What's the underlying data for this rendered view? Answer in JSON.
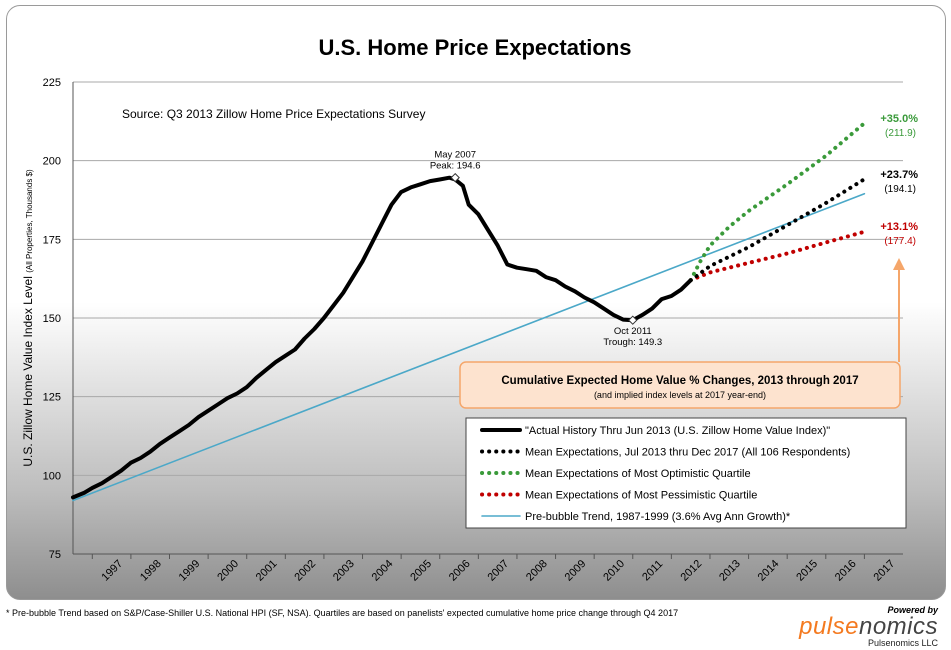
{
  "chart_data": {
    "type": "line",
    "title": "U.S. Home Price Expectations",
    "source": "Source: Q3 2013 Zillow Home Price Expectations Survey",
    "ylabel": "U.S. Zillow Home Value Index Level",
    "ylabel_units": "(All Properties, Thousands $)",
    "ylim": [
      75,
      225
    ],
    "yticks": [
      75,
      100,
      125,
      150,
      175,
      200,
      225
    ],
    "xlim": [
      1996.5,
      2018
    ],
    "xticks": [
      "1997",
      "1998",
      "1999",
      "2000",
      "2001",
      "2002",
      "2003",
      "2004",
      "2005",
      "2006",
      "2007",
      "2008",
      "2009",
      "2010",
      "2011",
      "2012",
      "2013",
      "2014",
      "2015",
      "2016",
      "2017"
    ],
    "grid": true,
    "series": [
      {
        "name": "\"Actual History Thru Jun 2013  (U.S. Zillow Home Value Index)\"",
        "color": "#000000",
        "style": "solid-thick",
        "x": [
          1996.5,
          1996.8,
          1997.0,
          1997.25,
          1997.5,
          1997.75,
          1998.0,
          1998.25,
          1998.5,
          1998.75,
          1999.0,
          1999.25,
          1999.5,
          1999.75,
          2000.0,
          2000.25,
          2000.5,
          2000.75,
          2001.0,
          2001.25,
          2001.5,
          2001.75,
          2002.0,
          2002.25,
          2002.5,
          2002.75,
          2003.0,
          2003.25,
          2003.5,
          2003.75,
          2004.0,
          2004.25,
          2004.5,
          2004.75,
          2005.0,
          2005.25,
          2005.5,
          2005.75,
          2006.0,
          2006.25,
          2006.4,
          2006.6,
          2006.75,
          2007.0,
          2007.25,
          2007.5,
          2007.75,
          2008.0,
          2008.25,
          2008.5,
          2008.75,
          2009.0,
          2009.25,
          2009.5,
          2009.75,
          2010.0,
          2010.25,
          2010.5,
          2010.75,
          2011.0,
          2011.25,
          2011.5,
          2011.75,
          2012.0,
          2012.25,
          2012.5
        ],
        "y": [
          93,
          94.5,
          96,
          97.5,
          99.5,
          101.5,
          104,
          105.5,
          107.5,
          110,
          112,
          114,
          116,
          118.5,
          120.5,
          122.5,
          124.5,
          126,
          128,
          131,
          133.5,
          136,
          138,
          140,
          143.5,
          146.5,
          150,
          154,
          158,
          163,
          168,
          174,
          180,
          186,
          190,
          191.5,
          192.5,
          193.5,
          194,
          194.6,
          194,
          192,
          186,
          183,
          178,
          173,
          167,
          166,
          165.5,
          165,
          163,
          162,
          160,
          158.5,
          156.5,
          155,
          153,
          151,
          149.5,
          149.3,
          151,
          153,
          156,
          157,
          159,
          162
        ]
      },
      {
        "name": "Mean Expectations, Jul 2013 thru Dec 2017  (All 106 Respondents)",
        "color": "#000000",
        "style": "dotted",
        "x": [
          2012.5,
          2013.0,
          2014.0,
          2015.0,
          2016.0,
          2017.0
        ],
        "y": [
          162,
          166.5,
          172.5,
          179.5,
          186.5,
          194.1
        ]
      },
      {
        "name": "Mean Expectations  of Most Optimistic Quartile",
        "color": "#3a9a3a",
        "style": "dotted",
        "x": [
          2012.5,
          2012.75,
          2013.0,
          2013.5,
          2014.0,
          2015.0,
          2016.0,
          2017.0
        ],
        "y": [
          162,
          168,
          173,
          179,
          184,
          192.5,
          201.5,
          211.9
        ]
      },
      {
        "name": "Mean Expectations  of Most Pessimistic Quartile",
        "color": "#c00000",
        "style": "dotted",
        "x": [
          2012.5,
          2013.0,
          2014.0,
          2015.0,
          2016.0,
          2017.0
        ],
        "y": [
          162,
          164.5,
          167.5,
          170.5,
          174,
          177.4
        ]
      },
      {
        "name": "Pre-bubble Trend, 1987-1999 (3.6% Avg Ann Growth)*",
        "color": "#4ba8c8",
        "style": "solid",
        "x": [
          1996.5,
          2017.0
        ],
        "y": [
          92,
          189.5
        ]
      }
    ],
    "annotations": [
      {
        "id": "peak",
        "lines": [
          "May 2007",
          "Peak: 194.6"
        ],
        "x": 2006.4,
        "y": 194.6
      },
      {
        "id": "trough",
        "lines": [
          "Oct 2011",
          "Trough: 149.3"
        ],
        "x": 2011.0,
        "y": 149.3
      },
      {
        "id": "opt",
        "pct": "+35.0%",
        "level": "(211.9)",
        "color": "#3a9a3a"
      },
      {
        "id": "mean",
        "pct": "+23.7%",
        "level": "(194.1)",
        "color": "#000000"
      },
      {
        "id": "pess",
        "pct": "+13.1%",
        "level": "(177.4)",
        "color": "#c00000"
      }
    ],
    "callout": {
      "title": "Cumulative Expected Home Value % Changes, 2013 through 2017",
      "subtitle": "(and implied index levels at 2017 year-end)"
    },
    "legend_position": "bottom-right"
  },
  "footnote": "* Pre-bubble Trend based on S&P/Case-Shiller U.S. National HPI (SF, NSA).  Quartiles are based on panelists' expected cumulative home price change through Q4 2017",
  "branding": {
    "powered_by": "Powered by",
    "logo_a": "pulse",
    "logo_b": "nomics",
    "company": "Pulsenomics LLC"
  }
}
